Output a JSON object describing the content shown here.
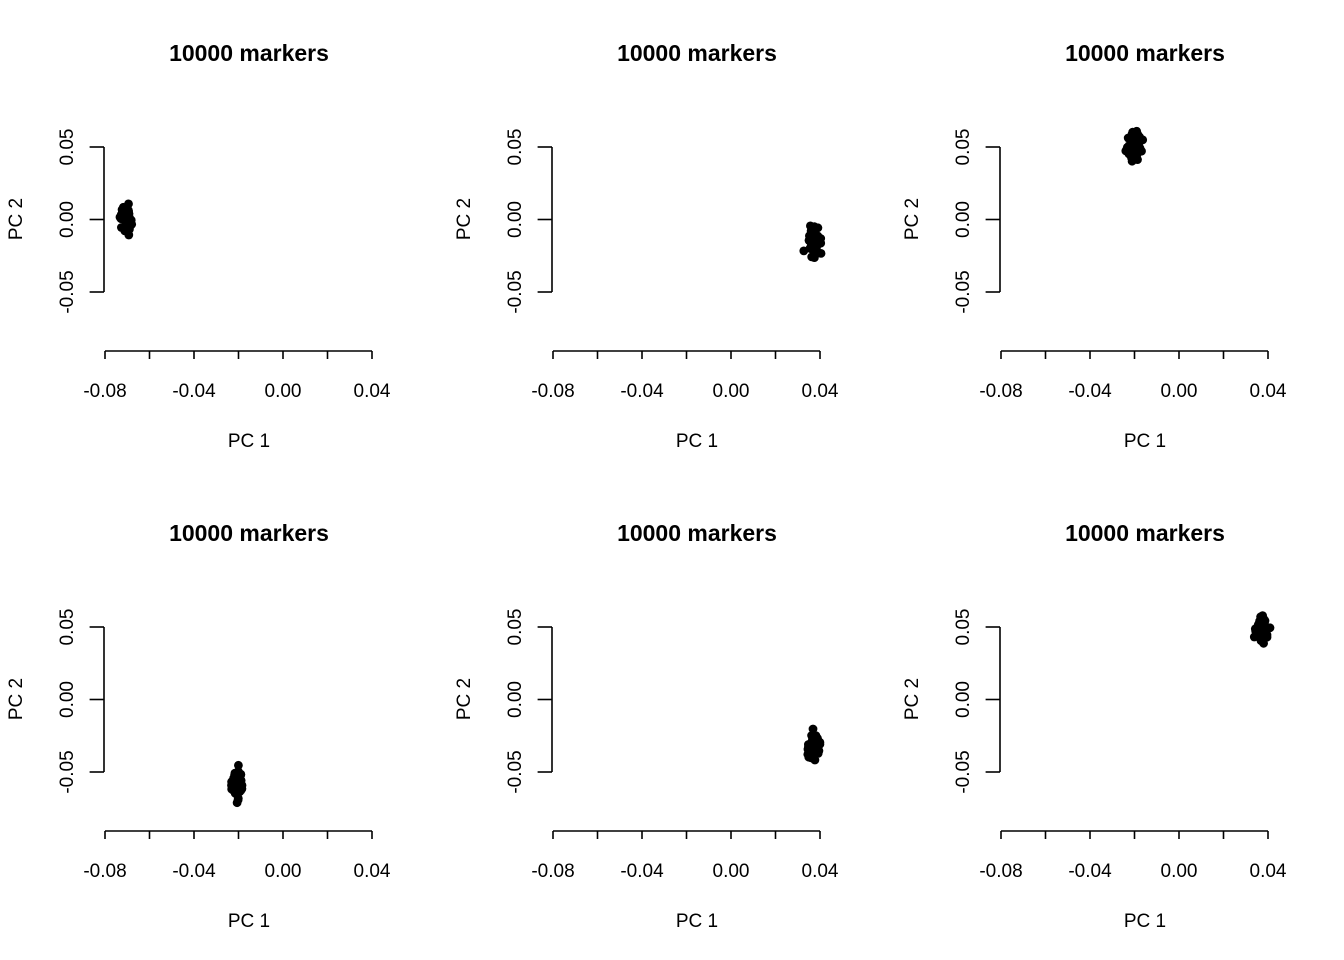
{
  "chart_data": [
    {
      "type": "scatter",
      "title": "10000 markers",
      "xlabel": "PC 1",
      "ylabel": "PC 2",
      "xticks": [
        "-0.08",
        "-0.04",
        "0.00",
        "0.04"
      ],
      "xminor_ticks": [
        -0.08,
        -0.06,
        -0.04,
        -0.02,
        0.0,
        0.02,
        0.04
      ],
      "yticks": [
        "-0.05",
        "0.00",
        "0.05"
      ],
      "xlim": [
        -0.08,
        0.04
      ],
      "ylim": [
        -0.05,
        0.05
      ],
      "color": "#000000",
      "cluster": {
        "center": [
          -0.0705,
          0.001
        ],
        "spread": [
          0.0022,
          0.0085
        ]
      }
    },
    {
      "type": "scatter",
      "title": "10000 markers",
      "xlabel": "PC 1",
      "ylabel": "PC 2",
      "xticks": [
        "-0.08",
        "-0.04",
        "0.00",
        "0.04"
      ],
      "xminor_ticks": [
        -0.08,
        -0.06,
        -0.04,
        -0.02,
        0.0,
        0.02,
        0.04
      ],
      "yticks": [
        "-0.05",
        "0.00",
        "0.05"
      ],
      "xlim": [
        -0.08,
        0.04
      ],
      "ylim": [
        -0.05,
        0.05
      ],
      "color": "#000000",
      "cluster": {
        "center": [
          0.037,
          -0.015
        ],
        "spread": [
          0.0025,
          0.0085
        ]
      }
    },
    {
      "type": "scatter",
      "title": "10000 markers",
      "xlabel": "PC 1",
      "ylabel": "PC 2",
      "xticks": [
        "-0.08",
        "-0.04",
        "0.00",
        "0.04"
      ],
      "xminor_ticks": [
        -0.08,
        -0.06,
        -0.04,
        -0.02,
        0.0,
        0.02,
        0.04
      ],
      "yticks": [
        "-0.05",
        "0.00",
        "0.05"
      ],
      "xlim": [
        -0.08,
        0.04
      ],
      "ylim": [
        -0.05,
        0.05
      ],
      "color": "#000000",
      "cluster": {
        "center": [
          -0.02,
          0.051
        ],
        "spread": [
          0.0025,
          0.009
        ]
      }
    },
    {
      "type": "scatter",
      "title": "10000 markers",
      "xlabel": "PC 1",
      "ylabel": "PC 2",
      "xticks": [
        "-0.08",
        "-0.04",
        "0.00",
        "0.04"
      ],
      "xminor_ticks": [
        -0.08,
        -0.06,
        -0.04,
        -0.02,
        0.0,
        0.02,
        0.04
      ],
      "yticks": [
        "-0.05",
        "0.00",
        "0.05"
      ],
      "xlim": [
        -0.08,
        0.04
      ],
      "ylim": [
        -0.05,
        0.05
      ],
      "color": "#000000",
      "cluster": {
        "center": [
          -0.0205,
          -0.058
        ],
        "spread": [
          0.0025,
          0.009
        ]
      }
    },
    {
      "type": "scatter",
      "title": "10000 markers",
      "xlabel": "PC 1",
      "ylabel": "PC 2",
      "xticks": [
        "-0.08",
        "-0.04",
        "0.00",
        "0.04"
      ],
      "xminor_ticks": [
        -0.08,
        -0.06,
        -0.04,
        -0.02,
        0.0,
        0.02,
        0.04
      ],
      "yticks": [
        "-0.05",
        "0.00",
        "0.05"
      ],
      "xlim": [
        -0.08,
        0.04
      ],
      "ylim": [
        -0.05,
        0.05
      ],
      "color": "#000000",
      "cluster": {
        "center": [
          0.037,
          -0.033
        ],
        "spread": [
          0.0025,
          0.008
        ]
      }
    },
    {
      "type": "scatter",
      "title": "10000 markers",
      "xlabel": "PC 1",
      "ylabel": "PC 2",
      "xticks": [
        "-0.08",
        "-0.04",
        "0.00",
        "0.04"
      ],
      "xminor_ticks": [
        -0.08,
        -0.06,
        -0.04,
        -0.02,
        0.0,
        0.02,
        0.04
      ],
      "yticks": [
        "-0.05",
        "0.00",
        "0.05"
      ],
      "xlim": [
        -0.08,
        0.04
      ],
      "ylim": [
        -0.05,
        0.05
      ],
      "color": "#000000",
      "cluster": {
        "center": [
          0.037,
          0.049
        ],
        "spread": [
          0.0025,
          0.008
        ]
      }
    }
  ]
}
